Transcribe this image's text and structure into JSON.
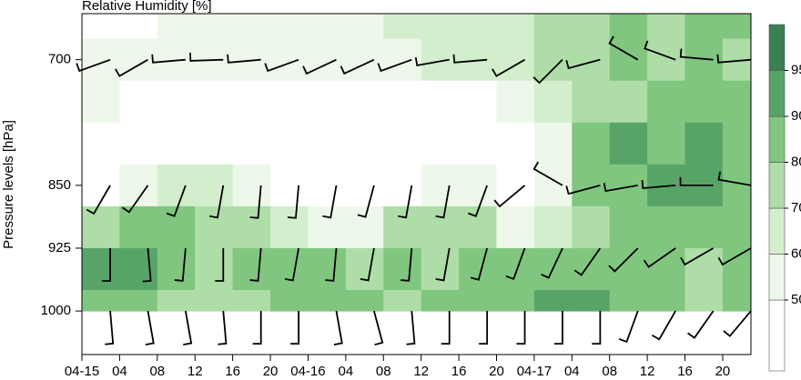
{
  "chart_data": {
    "type": "contour",
    "title": "Relative Humidity [%]",
    "y_label": "Pressure levels [hPa]",
    "x": [
      0,
      4,
      8,
      12,
      16,
      20,
      24,
      28,
      32,
      36,
      40,
      44,
      48,
      52,
      56,
      60,
      64,
      68
    ],
    "xlim": [
      0,
      71
    ],
    "xticks": [
      {
        "value": 0,
        "label": "04-15"
      },
      {
        "value": 4,
        "label": "04"
      },
      {
        "value": 8,
        "label": "08"
      },
      {
        "value": 12,
        "label": "12"
      },
      {
        "value": 16,
        "label": "16"
      },
      {
        "value": 20,
        "label": "20"
      },
      {
        "value": 24,
        "label": "04-16"
      },
      {
        "value": 28,
        "label": "04"
      },
      {
        "value": 32,
        "label": "08"
      },
      {
        "value": 36,
        "label": "12"
      },
      {
        "value": 40,
        "label": "16"
      },
      {
        "value": 44,
        "label": "20"
      },
      {
        "value": 48,
        "label": "04-17"
      },
      {
        "value": 52,
        "label": "04"
      },
      {
        "value": 56,
        "label": "08"
      },
      {
        "value": 60,
        "label": "12"
      },
      {
        "value": 64,
        "label": "16"
      },
      {
        "value": 68,
        "label": "20"
      }
    ],
    "pressure": [
      650,
      700,
      750,
      800,
      850,
      900,
      950,
      1000
    ],
    "ylim": [
      645,
      1052
    ],
    "yticks": [
      700,
      850,
      925,
      1000
    ],
    "levels": [
      50,
      60,
      70,
      80,
      90,
      95
    ],
    "colors": [
      "#ffffff",
      "#eef8ea",
      "#d3eecd",
      "#aedda8",
      "#80c67f",
      "#58a468",
      "#3c7f55"
    ],
    "rh": [
      [
        45,
        48,
        55,
        55,
        55,
        55,
        55,
        55,
        62,
        62,
        62,
        65,
        72,
        75,
        82,
        78,
        88,
        82
      ],
      [
        52,
        52,
        55,
        55,
        55,
        55,
        55,
        55,
        58,
        62,
        62,
        65,
        75,
        78,
        80,
        78,
        80,
        78
      ],
      [
        52,
        45,
        45,
        45,
        45,
        45,
        45,
        45,
        45,
        45,
        45,
        55,
        65,
        72,
        75,
        80,
        80,
        82
      ],
      [
        45,
        45,
        45,
        45,
        45,
        45,
        45,
        45,
        45,
        45,
        45,
        48,
        58,
        85,
        90,
        86,
        90,
        85
      ],
      [
        45,
        52,
        62,
        62,
        55,
        45,
        45,
        45,
        48,
        50,
        50,
        45,
        55,
        82,
        88,
        90,
        92,
        88
      ],
      [
        78,
        82,
        80,
        78,
        70,
        62,
        55,
        52,
        70,
        75,
        72,
        58,
        62,
        75,
        85,
        88,
        88,
        85
      ],
      [
        92,
        92,
        80,
        78,
        80,
        85,
        82,
        75,
        80,
        78,
        80,
        82,
        88,
        88,
        85,
        80,
        78,
        80
      ],
      [
        85,
        80,
        78,
        75,
        78,
        88,
        85,
        80,
        78,
        80,
        80,
        80,
        90,
        90,
        88,
        80,
        78,
        88
      ]
    ],
    "wind_levels": [
      700,
      850,
      925,
      1000
    ],
    "wind_direction": [
      [
        250,
        240,
        265,
        268,
        265,
        250,
        245,
        245,
        250,
        260,
        265,
        240,
        225,
        255,
        300,
        290,
        275,
        265
      ],
      [
        210,
        215,
        200,
        190,
        185,
        185,
        190,
        195,
        190,
        190,
        200,
        230,
        300,
        255,
        260,
        265,
        270,
        280
      ],
      [
        180,
        175,
        185,
        180,
        185,
        190,
        185,
        190,
        185,
        190,
        195,
        200,
        205,
        215,
        225,
        235,
        240,
        240
      ],
      [
        175,
        170,
        170,
        175,
        180,
        180,
        170,
        165,
        175,
        180,
        180,
        180,
        180,
        180,
        200,
        210,
        215,
        220
      ]
    ]
  }
}
